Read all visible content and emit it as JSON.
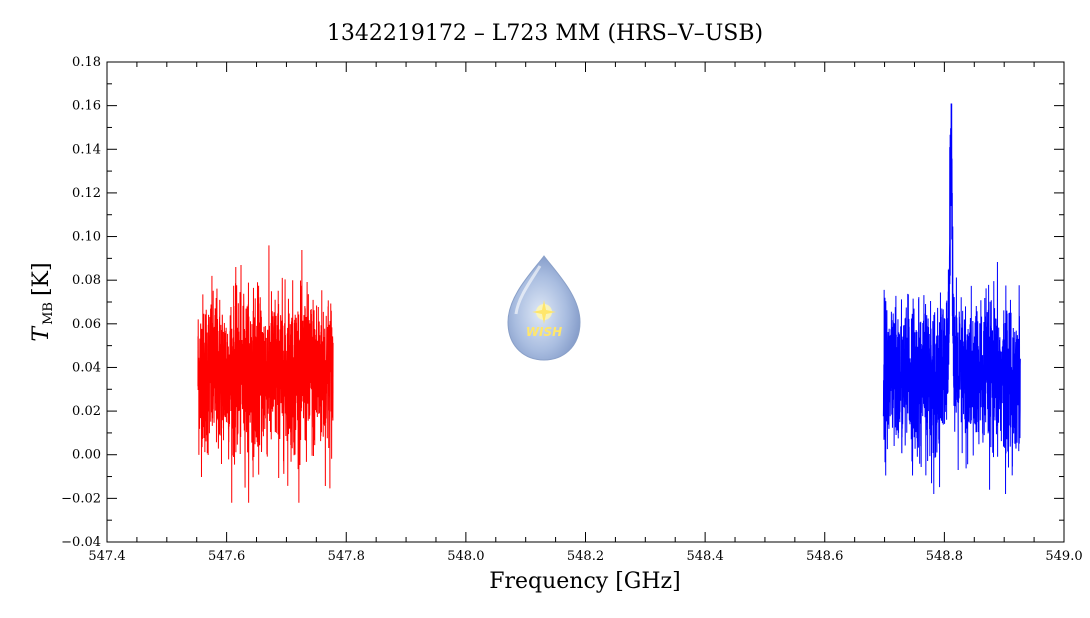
{
  "chart_data": {
    "type": "line",
    "title": "1342219172 – L723 MM (HRS–V–USB)",
    "xlabel": "Frequency [GHz]",
    "ylabel_main": "T",
    "ylabel_sub": "MB",
    "ylabel_unit": "[K]",
    "xlim": [
      547.4,
      549.0
    ],
    "ylim": [
      -0.04,
      0.18
    ],
    "x_ticks": [
      "547.4",
      "547.6",
      "547.8",
      "548.0",
      "548.2",
      "548.4",
      "548.6",
      "548.8",
      "549.0"
    ],
    "y_ticks": [
      "−0.04",
      "−0.02",
      "0.00",
      "0.02",
      "0.04",
      "0.06",
      "0.08",
      "0.10",
      "0.12",
      "0.14",
      "0.16",
      "0.18"
    ],
    "grid": false,
    "series": [
      {
        "color": "#ff0000",
        "x_range": [
          547.552,
          547.778
        ],
        "baseline": 0.037,
        "noise_sigma": 0.018,
        "min": -0.022,
        "max": 0.116,
        "line_center": null
      },
      {
        "color": "#0000ff",
        "x_range": [
          548.698,
          548.927
        ],
        "baseline": 0.035,
        "noise_sigma": 0.017,
        "min": -0.018,
        "max": 0.161,
        "line_center": 548.811,
        "line_peak": 0.12
      }
    ]
  },
  "logo": {
    "text": "WISH"
  }
}
